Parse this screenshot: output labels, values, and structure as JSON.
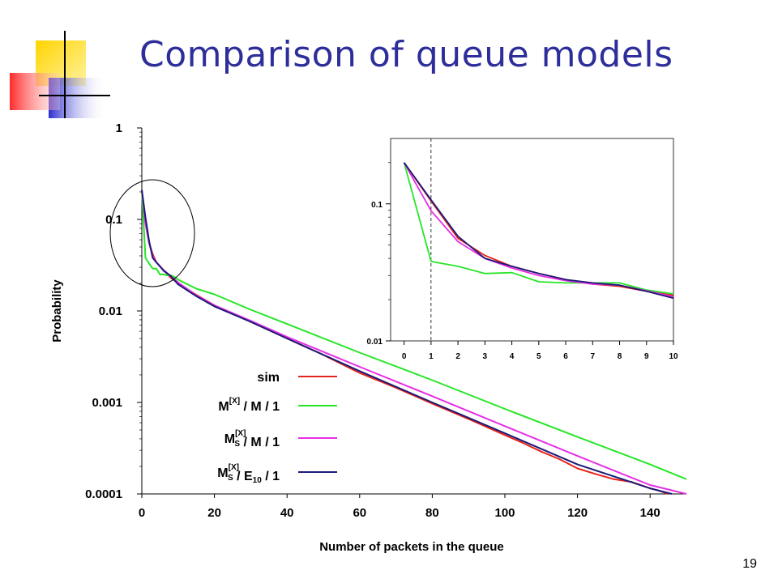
{
  "slide": {
    "title": "Comparison of queue models",
    "page_number": "19"
  },
  "legend": [
    {
      "base": "sim",
      "sup": "",
      "sub": "",
      "rest": "",
      "sub2": "",
      "tail": "",
      "color": "#e8231b"
    },
    {
      "base": "M",
      "sup": "[X]",
      "sub": "",
      "rest": " / M / 1",
      "sub2": "",
      "tail": "",
      "color": "#27e627"
    },
    {
      "base": "M",
      "sup": "[X]",
      "sub": "S",
      "rest": " / M / 1",
      "sub2": "",
      "tail": "",
      "color": "#e62ee6"
    },
    {
      "base": "M",
      "sup": "[X]",
      "sub": "S",
      "rest": " / E",
      "sub2": "10",
      "tail": " / 1",
      "color": "#1b1b78"
    }
  ],
  "chart_data": [
    {
      "type": "line",
      "xlabel": "Number of packets in the queue",
      "ylabel": "Probability",
      "xlim": [
        0,
        150
      ],
      "ylim": [
        0.0001,
        1
      ],
      "yscale": "log",
      "x_ticks": [
        "0",
        "20",
        "40",
        "60",
        "80",
        "100",
        "120",
        "140"
      ],
      "y_ticks": [
        "1",
        "0.1",
        "0.01",
        "0.001",
        "0.0001"
      ],
      "series": [
        {
          "name": "sim",
          "color": "#e8231b",
          "x": [
            0,
            1,
            2,
            3,
            4,
            6,
            8,
            10,
            15,
            20,
            30,
            40,
            50,
            60,
            70,
            80,
            90,
            100,
            105,
            110,
            115,
            120,
            125,
            130,
            135,
            140,
            142,
            145
          ],
          "y": [
            0.21,
            0.09,
            0.055,
            0.042,
            0.034,
            0.028,
            0.023,
            0.02,
            0.015,
            0.0115,
            0.0076,
            0.005,
            0.0033,
            0.0021,
            0.00145,
            0.00097,
            0.00066,
            0.00044,
            0.00036,
            0.00029,
            0.00024,
            0.00019,
            0.000165,
            0.000145,
            0.000135,
            0.000115,
            0.00011,
            9.8e-05
          ]
        },
        {
          "name": "M[X] / M / 1",
          "color": "#27e627",
          "x": [
            0,
            1,
            2,
            3,
            4,
            5,
            6,
            7,
            8,
            9,
            10,
            15,
            20,
            30,
            40,
            60,
            80,
            100,
            120,
            140,
            150
          ],
          "y": [
            0.21,
            0.038,
            0.033,
            0.029,
            0.029,
            0.025,
            0.025,
            0.0245,
            0.0245,
            0.0235,
            0.022,
            0.0175,
            0.0152,
            0.0103,
            0.0072,
            0.0035,
            0.00175,
            0.00085,
            0.00042,
            0.00021,
            0.000145
          ]
        },
        {
          "name": "MS[X] / M / 1",
          "color": "#e62ee6",
          "x": [
            0,
            1,
            2,
            3,
            4,
            6,
            8,
            10,
            15,
            20,
            30,
            40,
            60,
            80,
            100,
            120,
            140,
            150
          ],
          "y": [
            0.21,
            0.09,
            0.055,
            0.04,
            0.034,
            0.028,
            0.024,
            0.0205,
            0.0148,
            0.0115,
            0.0078,
            0.0052,
            0.00245,
            0.00117,
            0.00055,
            0.00026,
            0.000125,
            9.5e-05
          ]
        },
        {
          "name": "MS[X] / E10 / 1",
          "color": "#1b1b78",
          "x": [
            0,
            1,
            2,
            3,
            4,
            6,
            8,
            10,
            15,
            20,
            30,
            40,
            60,
            80,
            100,
            120,
            140,
            146
          ],
          "y": [
            0.21,
            0.105,
            0.058,
            0.038,
            0.034,
            0.0275,
            0.024,
            0.0195,
            0.0145,
            0.0112,
            0.0076,
            0.005,
            0.0022,
            0.001,
            0.00046,
            0.00021,
            0.000115,
            9.3e-05
          ]
        }
      ],
      "annotation": "circle highlighting x = 0 to 10"
    },
    {
      "type": "line",
      "xlim": [
        -0.5,
        10
      ],
      "ylim": [
        0.01,
        0.3
      ],
      "yscale": "log",
      "x_ticks": [
        "0",
        "1",
        "2",
        "3",
        "4",
        "5",
        "6",
        "7",
        "8",
        "9",
        "10"
      ],
      "y_ticks": [
        "0.1",
        "0.01"
      ],
      "vline_x": 1,
      "series": [
        {
          "name": "sim",
          "color": "#e8231b",
          "x": [
            0,
            1,
            2,
            3,
            4,
            5,
            6,
            7,
            8,
            9,
            10
          ],
          "y": [
            0.2,
            0.105,
            0.056,
            0.042,
            0.035,
            0.031,
            0.028,
            0.026,
            0.025,
            0.023,
            0.0215
          ]
        },
        {
          "name": "M[X] / M / 1",
          "color": "#27e627",
          "x": [
            0,
            1,
            2,
            3,
            4,
            5,
            6,
            7,
            8,
            9,
            10
          ],
          "y": [
            0.2,
            0.038,
            0.035,
            0.031,
            0.0315,
            0.027,
            0.0265,
            0.0265,
            0.0265,
            0.0235,
            0.022
          ]
        },
        {
          "name": "MS[X] / M / 1",
          "color": "#e62ee6",
          "x": [
            0,
            1,
            2,
            3,
            4,
            5,
            6,
            7,
            8,
            9,
            10
          ],
          "y": [
            0.2,
            0.089,
            0.053,
            0.04,
            0.034,
            0.03,
            0.0275,
            0.026,
            0.0255,
            0.0232,
            0.021
          ]
        },
        {
          "name": "MS[X] / E10 / 1",
          "color": "#1b1b78",
          "x": [
            0,
            1,
            2,
            3,
            4,
            5,
            6,
            7,
            8,
            9,
            10
          ],
          "y": [
            0.2,
            0.107,
            0.058,
            0.04,
            0.035,
            0.031,
            0.028,
            0.0265,
            0.0255,
            0.023,
            0.0205
          ]
        }
      ]
    }
  ]
}
